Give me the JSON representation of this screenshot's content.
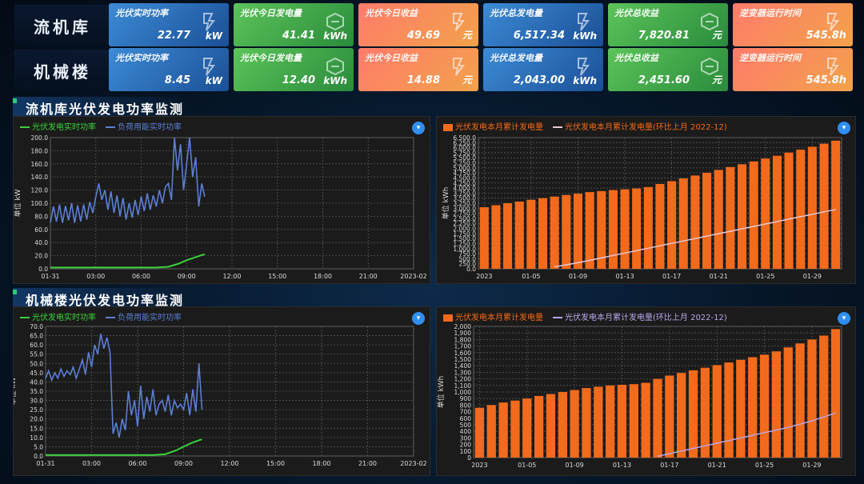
{
  "rows": [
    {
      "label": "流机库",
      "cards": [
        {
          "title": "光伏实时功率",
          "value": "22.77",
          "unit": "kW",
          "color": "blue"
        },
        {
          "title": "光伏今日发电量",
          "value": "41.41",
          "unit": "kWh",
          "color": "green"
        },
        {
          "title": "光伏今日收益",
          "value": "49.69",
          "unit": "元",
          "color": "red"
        },
        {
          "title": "光伏总发电量",
          "value": "6,517.34",
          "unit": "kWh",
          "color": "blue"
        },
        {
          "title": "光伏总收益",
          "value": "7,820.81",
          "unit": "元",
          "color": "green"
        },
        {
          "title": "逆变器运行时间",
          "value": "545.8h",
          "unit": "",
          "color": "red"
        }
      ]
    },
    {
      "label": "机械楼",
      "cards": [
        {
          "title": "光伏实时功率",
          "value": "8.45",
          "unit": "kW",
          "color": "blue"
        },
        {
          "title": "光伏今日发电量",
          "value": "12.40",
          "unit": "kWh",
          "color": "green"
        },
        {
          "title": "光伏今日收益",
          "value": "14.88",
          "unit": "元",
          "color": "red"
        },
        {
          "title": "光伏总发电量",
          "value": "2,043.00",
          "unit": "kWh",
          "color": "blue"
        },
        {
          "title": "光伏总收益",
          "value": "2,451.60",
          "unit": "元",
          "color": "green"
        },
        {
          "title": "逆变器运行时间",
          "value": "545.8h",
          "unit": "",
          "color": "red"
        }
      ]
    }
  ],
  "sections": [
    {
      "title": "流机库光伏发电功率监测"
    },
    {
      "title": "机械楼光伏发电功率监测"
    }
  ],
  "colors": {
    "blue_line": "#5b7fd4",
    "green_line": "#3ad13a",
    "bar": "#f26a1b",
    "cum_line": "#e8c8d8",
    "cum_line2": "#b9a6e8"
  },
  "chart_data": [
    {
      "type": "line",
      "legend": [
        "光伏发电实时功率",
        "负荷用能实时功率"
      ],
      "ylabel": "单位 kW",
      "ylim": [
        0,
        200
      ],
      "yticks": [
        "0.0",
        "20.0",
        "40.0",
        "60.0",
        "80.0",
        "100.0",
        "120.0",
        "140.0",
        "160.0",
        "180.0",
        "200.0"
      ],
      "xticks": [
        "01-31",
        "03:00",
        "06:00",
        "09:00",
        "12:00",
        "15:00",
        "18:00",
        "21:00",
        "2023-02"
      ],
      "xrange_hours": [
        0,
        24
      ],
      "series": [
        {
          "name": "负荷用能实时功率",
          "color": "#5b7fd4",
          "x": [
            0,
            0.2,
            0.4,
            0.6,
            0.8,
            1.0,
            1.2,
            1.4,
            1.6,
            1.8,
            2.0,
            2.2,
            2.4,
            2.6,
            2.8,
            3.0,
            3.2,
            3.4,
            3.6,
            3.8,
            4.0,
            4.2,
            4.4,
            4.6,
            4.8,
            5.0,
            5.2,
            5.4,
            5.6,
            5.8,
            6.0,
            6.2,
            6.4,
            6.6,
            6.8,
            7.0,
            7.2,
            7.4,
            7.6,
            7.8,
            8.0,
            8.2,
            8.4,
            8.6,
            8.8,
            9.0,
            9.2,
            9.4,
            9.6,
            9.8,
            10.0,
            10.2
          ],
          "y": [
            70,
            95,
            72,
            98,
            70,
            96,
            74,
            100,
            70,
            97,
            72,
            98,
            75,
            102,
            85,
            110,
            130,
            105,
            120,
            90,
            118,
            85,
            112,
            80,
            108,
            75,
            100,
            78,
            105,
            82,
            110,
            88,
            115,
            90,
            112,
            95,
            120,
            100,
            125,
            130,
            105,
            200,
            150,
            190,
            120,
            160,
            200,
            140,
            170,
            95,
            130,
            110
          ]
        },
        {
          "name": "光伏发电实时功率",
          "color": "#3ad13a",
          "x": [
            0,
            1,
            2,
            3,
            4,
            5,
            6,
            7,
            7.8,
            8.5,
            9,
            9.5,
            10,
            10.2
          ],
          "y": [
            2,
            2,
            2,
            2,
            2,
            2,
            2,
            2,
            3,
            8,
            13,
            17,
            21,
            22
          ]
        }
      ]
    },
    {
      "type": "bar",
      "legend": [
        "光伏发电本月累计发电量",
        "光伏发电本月累计发电量(环比上月 2022-12)"
      ],
      "ylabel": "单位 kWh",
      "ylim": [
        0,
        6500
      ],
      "yticks": [
        "0.0",
        "250.0",
        "500.0",
        "750.0",
        "1,000.0",
        "1,250.0",
        "1,500.0",
        "1,750.0",
        "2,000.0",
        "2,250.0",
        "2,500.0",
        "2,750.0",
        "3,000.0",
        "3,250.0",
        "3,500.0",
        "3,750.0",
        "4,000.0",
        "4,250.0",
        "4,500.0",
        "4,750.0",
        "5,000.0",
        "5,250.0",
        "5,500.0",
        "5,750.0",
        "6,000.0",
        "6,250.0",
        "6,500.0"
      ],
      "xticks": [
        "2023",
        "01-05",
        "01-09",
        "01-13",
        "01-17",
        "01-21",
        "01-25",
        "01-29"
      ],
      "days": 31,
      "bar_values": [
        3050,
        3150,
        3250,
        3330,
        3420,
        3500,
        3580,
        3660,
        3720,
        3800,
        3850,
        3900,
        3940,
        3980,
        4050,
        4200,
        4340,
        4480,
        4620,
        4760,
        4900,
        5040,
        5180,
        5320,
        5460,
        5600,
        5760,
        5900,
        6050,
        6200,
        6350
      ],
      "line_values": [
        null,
        null,
        null,
        null,
        null,
        null,
        100,
        200,
        300,
        420,
        540,
        660,
        780,
        900,
        1020,
        1140,
        1260,
        1380,
        1500,
        1620,
        1740,
        1860,
        1980,
        2100,
        2220,
        2340,
        2460,
        2580,
        2700,
        2820,
        2940
      ]
    },
    {
      "type": "line",
      "legend": [
        "光伏发电实时功率",
        "负荷用能实时功率"
      ],
      "ylabel": "单位 kW",
      "ylim": [
        0,
        70
      ],
      "yticks": [
        "0.0",
        "5.0",
        "10.0",
        "15.0",
        "20.0",
        "25.0",
        "30.0",
        "35.0",
        "40.0",
        "45.0",
        "50.0",
        "55.0",
        "60.0",
        "65.0",
        "70.0"
      ],
      "xticks": [
        "01-31",
        "03:00",
        "06:00",
        "09:00",
        "12:00",
        "15:00",
        "18:00",
        "21:00",
        "2023-02"
      ],
      "xrange_hours": [
        0,
        24
      ],
      "series": [
        {
          "name": "负荷用能实时功率",
          "color": "#5b7fd4",
          "x": [
            0,
            0.2,
            0.4,
            0.6,
            0.8,
            1.0,
            1.2,
            1.4,
            1.6,
            1.8,
            2.0,
            2.2,
            2.4,
            2.6,
            2.8,
            3.0,
            3.2,
            3.4,
            3.6,
            3.8,
            4.0,
            4.2,
            4.4,
            4.6,
            4.8,
            5.0,
            5.2,
            5.4,
            5.6,
            5.8,
            6.0,
            6.2,
            6.4,
            6.6,
            6.8,
            7.0,
            7.2,
            7.4,
            7.6,
            7.8,
            8.0,
            8.2,
            8.4,
            8.6,
            8.8,
            9.0,
            9.2,
            9.4,
            9.6,
            9.8,
            10.0,
            10.2
          ],
          "y": [
            42,
            46,
            41,
            45,
            42,
            47,
            43,
            46,
            44,
            48,
            42,
            47,
            52,
            44,
            56,
            48,
            60,
            55,
            66,
            58,
            64,
            56,
            12,
            18,
            10,
            20,
            14,
            35,
            22,
            30,
            16,
            38,
            20,
            32,
            24,
            36,
            22,
            28,
            30,
            24,
            33,
            22,
            30,
            26,
            28,
            25,
            34,
            22,
            36,
            24,
            50,
            25
          ]
        },
        {
          "name": "光伏发电实时功率",
          "color": "#3ad13a",
          "x": [
            0,
            1,
            2,
            3,
            4,
            5,
            6,
            7,
            7.8,
            8.5,
            9,
            9.5,
            10,
            10.2
          ],
          "y": [
            0.5,
            0.5,
            0.5,
            0.5,
            0.5,
            0.5,
            0.5,
            0.5,
            1,
            3,
            5,
            7,
            8.5,
            9
          ]
        }
      ]
    },
    {
      "type": "bar",
      "legend": [
        "光伏发电本月累计发电量",
        "光伏发电本月累计发电量(环比上月 2022-12)"
      ],
      "ylabel": "单位 kWh",
      "ylim": [
        0,
        2000
      ],
      "yticks": [
        "0",
        "100",
        "200",
        "300",
        "400",
        "500",
        "600",
        "700",
        "800",
        "900",
        "1,000",
        "1,100",
        "1,200",
        "1,300",
        "1,400",
        "1,500",
        "1,600",
        "1,700",
        "1,800",
        "1,900",
        "2,000"
      ],
      "xticks": [
        "2023",
        "01-05",
        "01-09",
        "01-13",
        "01-17",
        "01-21",
        "01-25",
        "01-29"
      ],
      "days": 31,
      "bar_values": [
        760,
        800,
        840,
        870,
        900,
        940,
        970,
        1000,
        1030,
        1060,
        1080,
        1100,
        1110,
        1120,
        1140,
        1200,
        1250,
        1290,
        1330,
        1370,
        1410,
        1450,
        1490,
        1530,
        1570,
        1620,
        1680,
        1740,
        1800,
        1860,
        1960
      ],
      "line_values": [
        null,
        null,
        null,
        null,
        null,
        null,
        null,
        null,
        null,
        null,
        null,
        null,
        null,
        null,
        null,
        20,
        60,
        100,
        140,
        180,
        220,
        260,
        300,
        340,
        380,
        420,
        460,
        510,
        560,
        620,
        680
      ]
    }
  ]
}
